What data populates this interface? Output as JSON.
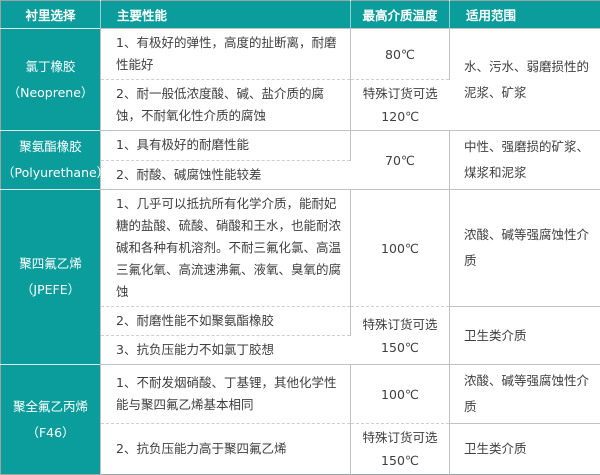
{
  "colors": {
    "accent_teal": "#0b9c9c",
    "border_gray": "#c2c2c2",
    "dashed_divider": "#cfcfcf",
    "body_text": "#3f3f3f",
    "header_text": "#ffffff"
  },
  "table": {
    "headers": {
      "lining": "衬里选择",
      "performance": "主要性能",
      "max_temp": "最高介质温度",
      "range": "适用范围"
    },
    "special_order_note": "特殊订货可选",
    "rows": [
      {
        "material": "氯丁橡胶",
        "material_en": "（Neoprene）",
        "items": [
          {
            "perf": "1、有极好的弹性，高度的扯断离，耐磨性能好",
            "temp": "80℃"
          },
          {
            "perf": "2、耐一般低浓度酸、碱、盐介质的腐蚀，不耐氧化性介质的腐蚀",
            "temp_note": "特殊订货可选",
            "temp": "120℃"
          }
        ],
        "range": "水、污水、弱磨损性的泥浆、矿浆"
      },
      {
        "material": "聚氨酯橡胶",
        "material_en": "（Polyurethane）",
        "items": [
          {
            "perf": "1、具有极好的耐磨性能",
            "temp": "70℃"
          },
          {
            "perf": "2、耐酸、碱腐蚀性能较差"
          }
        ],
        "range": "中性、强磨损的矿浆、煤浆和泥浆"
      },
      {
        "material": "聚四氟乙烯",
        "material_en": "（JPEFE）",
        "items": [
          {
            "perf": "1、几乎可以抵抗所有化学介质，能耐妃糖的盐酸、硫酸、硝酸和王水，也能耐浓碱和各种有机溶剂。不耐三氟化氯、高温三氟化氧、高流速沸氟、液氧、臭氧的腐蚀",
            "temp": "100℃"
          },
          {
            "perf": "2、耐磨性能不如聚氨酯橡胶",
            "temp_note": "特殊订货可选",
            "temp": "150℃"
          },
          {
            "perf": "3、抗负压能力不如氯丁胶想"
          }
        ],
        "range_top": "浓酸、碱等强腐蚀性介质",
        "range_bottom": "卫生类介质"
      },
      {
        "material": "聚全氟乙丙烯",
        "material_en": "（F46）",
        "items": [
          {
            "perf": "1、不耐发烟硝酸、丁基锂，其他化学性能与聚四氟乙烯基本相同",
            "temp": "100℃"
          },
          {
            "perf": "2、抗负压能力高于聚四氟乙烯",
            "temp_note": "特殊订货可选",
            "temp": "150℃"
          }
        ],
        "range_top": "浓酸、碱等强腐蚀性介质",
        "range_bottom": "卫生类介质"
      }
    ]
  }
}
